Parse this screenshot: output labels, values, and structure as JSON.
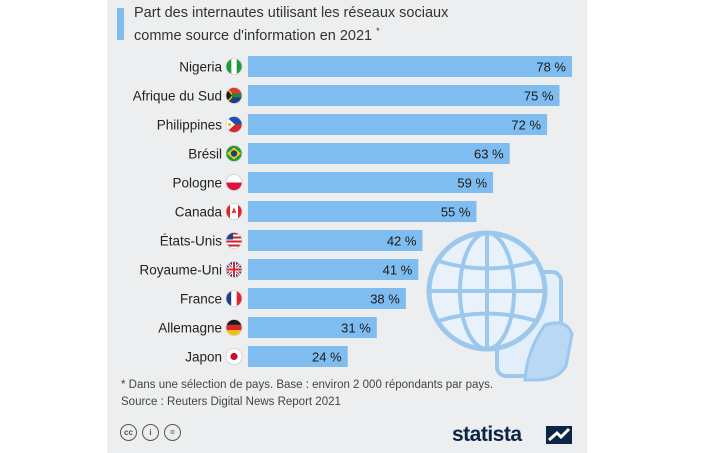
{
  "title": {
    "line1": "Part des internautes utilisant les réseaux sociaux",
    "line2": "comme source d'information en 2021",
    "asterisk": "*"
  },
  "chart_data": {
    "type": "bar",
    "orientation": "horizontal",
    "title": "Part des internautes utilisant les réseaux sociaux comme source d'information en 2021 *",
    "unit": "%",
    "categories": [
      "Nigeria",
      "Afrique du Sud",
      "Philippines",
      "Brésil",
      "Pologne",
      "Canada",
      "États-Unis",
      "Royaume-Uni",
      "France",
      "Allemagne",
      "Japon"
    ],
    "values": [
      78,
      75,
      72,
      63,
      59,
      55,
      42,
      41,
      38,
      31,
      24
    ],
    "value_labels": [
      "78 %",
      "75 %",
      "72 %",
      "63 %",
      "59 %",
      "55 %",
      "42 %",
      "41 %",
      "38 %",
      "31 %",
      "24 %"
    ],
    "flags": [
      "nigeria",
      "south-africa",
      "philippines",
      "brazil",
      "poland",
      "canada",
      "usa",
      "uk",
      "france",
      "germany",
      "japan"
    ],
    "xlim": [
      0,
      78
    ],
    "bar_color": "#7fbdf0",
    "grid": false
  },
  "footnote": {
    "line1": "* Dans une sélection de pays. Base : environ 2 000 répondants par pays.",
    "line2": "Source : Reuters Digital News Report 2021"
  },
  "license_icons": [
    "cc",
    "i",
    "="
  ],
  "brand": "statista"
}
